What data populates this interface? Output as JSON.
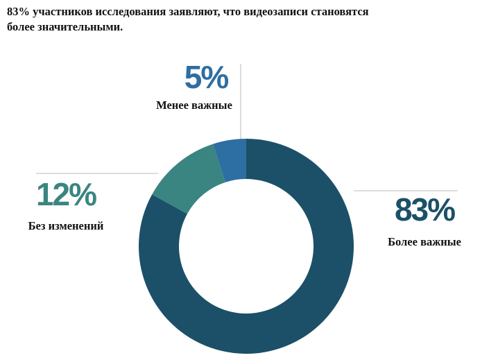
{
  "chart_data": {
    "type": "donut",
    "title": "83% участников исследования заявляют, что видеозаписи становятся более значительными.",
    "categories": [
      "Более важные",
      "Без изменений",
      "Менее важные"
    ],
    "values": [
      83,
      12,
      5
    ],
    "value_labels": [
      "83%",
      "12%",
      "5%"
    ],
    "colors": [
      "#1b5068",
      "#3a8581",
      "#2d6ea3"
    ]
  }
}
